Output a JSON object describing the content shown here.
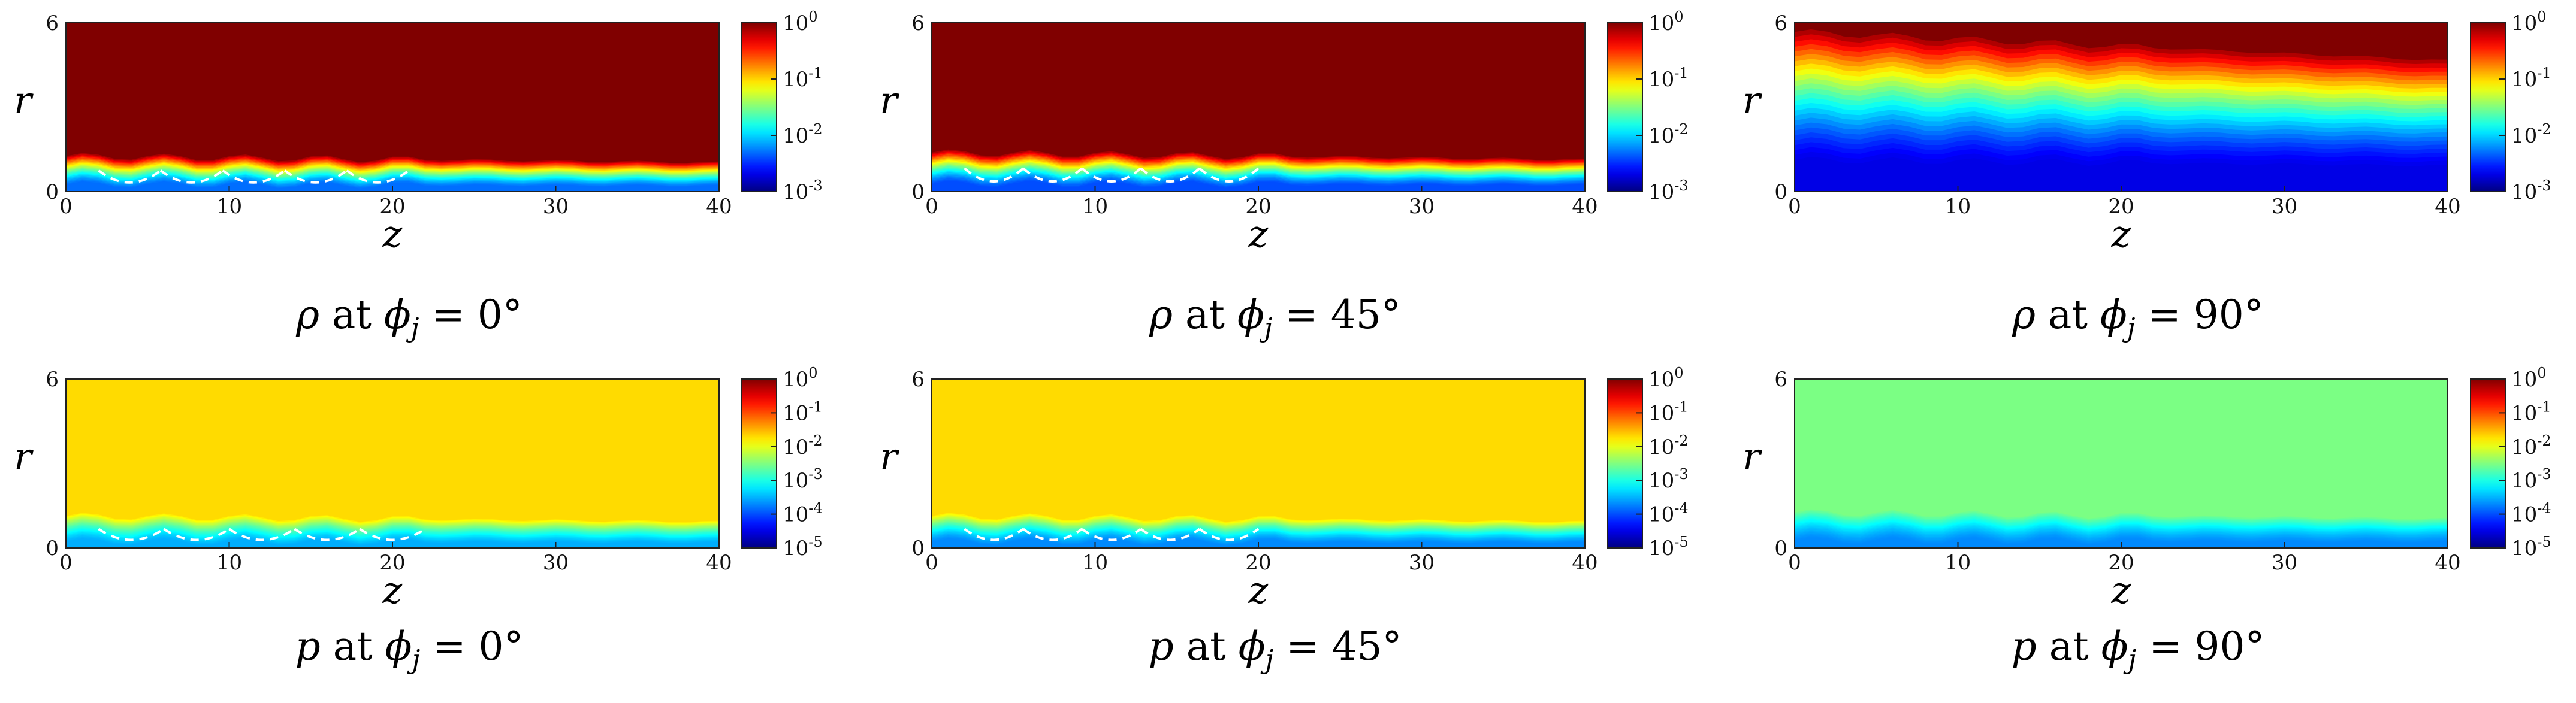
{
  "chart_data": [
    {
      "type": "heatmap",
      "field": "rho",
      "title_parts": [
        "ρ",
        " at ",
        "ϕ",
        "j",
        " = 0°"
      ],
      "xlabel": "z",
      "ylabel": "r",
      "xticks": [
        "0",
        "10",
        "20",
        "30",
        "40"
      ],
      "yticks": [
        "0",
        "6"
      ],
      "xlim": [
        0,
        40
      ],
      "ylim": [
        0,
        6
      ],
      "colorbar": {
        "scale": "log",
        "range": [
          0.001,
          1
        ],
        "exponents": [
          "0",
          "-1",
          "-2",
          "-3"
        ]
      },
      "field_profile": {
        "background": 1.0,
        "jet_radius": 1.0,
        "jet_value": 0.005,
        "dashed_cells_end_z": 21
      }
    },
    {
      "type": "heatmap",
      "field": "rho",
      "title_parts": [
        "ρ",
        " at ",
        "ϕ",
        "j",
        " = 45°"
      ],
      "xlabel": "z",
      "ylabel": "r",
      "xticks": [
        "0",
        "10",
        "20",
        "30",
        "40"
      ],
      "yticks": [
        "0",
        "6"
      ],
      "xlim": [
        0,
        40
      ],
      "ylim": [
        0,
        6
      ],
      "colorbar": {
        "scale": "log",
        "range": [
          0.001,
          1
        ],
        "exponents": [
          "0",
          "-1",
          "-2",
          "-3"
        ]
      },
      "field_profile": {
        "background": 1.0,
        "jet_radius": 1.1,
        "jet_value": 0.004,
        "dashed_cells_end_z": 20
      }
    },
    {
      "type": "heatmap",
      "field": "rho",
      "title_parts": [
        "ρ",
        " at ",
        "ϕ",
        "j",
        " = 90°"
      ],
      "xlabel": "z",
      "ylabel": "r",
      "xticks": [
        "0",
        "10",
        "20",
        "30",
        "40"
      ],
      "yticks": [
        "0",
        "6"
      ],
      "xlim": [
        0,
        40
      ],
      "ylim": [
        0,
        6
      ],
      "colorbar": {
        "scale": "log",
        "range": [
          0.001,
          1
        ],
        "exponents": [
          "0",
          "-1",
          "-2",
          "-3"
        ]
      },
      "field_profile": {
        "background": 1.0,
        "jet_radius": 4.5,
        "jet_value": 0.002,
        "dashed_cells_end_z": 0
      }
    },
    {
      "type": "heatmap",
      "field": "p",
      "title_parts": [
        "p",
        " at ",
        "ϕ",
        "j",
        " = 0°"
      ],
      "xlabel": "z",
      "ylabel": "r",
      "xticks": [
        "0",
        "10",
        "20",
        "30",
        "40"
      ],
      "yticks": [
        "0",
        "6"
      ],
      "xlim": [
        0,
        40
      ],
      "ylim": [
        0,
        6
      ],
      "colorbar": {
        "scale": "log",
        "range": [
          1e-05,
          1
        ],
        "exponents": [
          "0",
          "-1",
          "-2",
          "-3",
          "-4",
          "-5"
        ]
      },
      "field_profile": {
        "background": 0.02,
        "jet_radius": 0.9,
        "jet_value": 0.0003,
        "dashed_cells_end_z": 22
      }
    },
    {
      "type": "heatmap",
      "field": "p",
      "title_parts": [
        "p",
        " at ",
        "ϕ",
        "j",
        " = 45°"
      ],
      "xlabel": "z",
      "ylabel": "r",
      "xticks": [
        "0",
        "10",
        "20",
        "30",
        "40"
      ],
      "yticks": [
        "0",
        "6"
      ],
      "xlim": [
        0,
        40
      ],
      "ylim": [
        0,
        6
      ],
      "colorbar": {
        "scale": "log",
        "range": [
          1e-05,
          1
        ],
        "exponents": [
          "0",
          "-1",
          "-2",
          "-3",
          "-4",
          "-5"
        ]
      },
      "field_profile": {
        "background": 0.02,
        "jet_radius": 0.9,
        "jet_value": 0.0002,
        "dashed_cells_end_z": 20
      }
    },
    {
      "type": "heatmap",
      "field": "p",
      "title_parts": [
        "p",
        " at ",
        "ϕ",
        "j",
        " = 90°"
      ],
      "xlabel": "z",
      "ylabel": "r",
      "xticks": [
        "0",
        "10",
        "20",
        "30",
        "40"
      ],
      "yticks": [
        "0",
        "6"
      ],
      "xlim": [
        0,
        40
      ],
      "ylim": [
        0,
        6
      ],
      "colorbar": {
        "scale": "log",
        "range": [
          1e-05,
          1
        ],
        "exponents": [
          "0",
          "-1",
          "-2",
          "-3",
          "-4",
          "-5"
        ]
      },
      "field_profile": {
        "background": 0.003,
        "jet_radius": 1.0,
        "jet_value": 0.0002,
        "dashed_cells_end_z": 0
      }
    }
  ]
}
